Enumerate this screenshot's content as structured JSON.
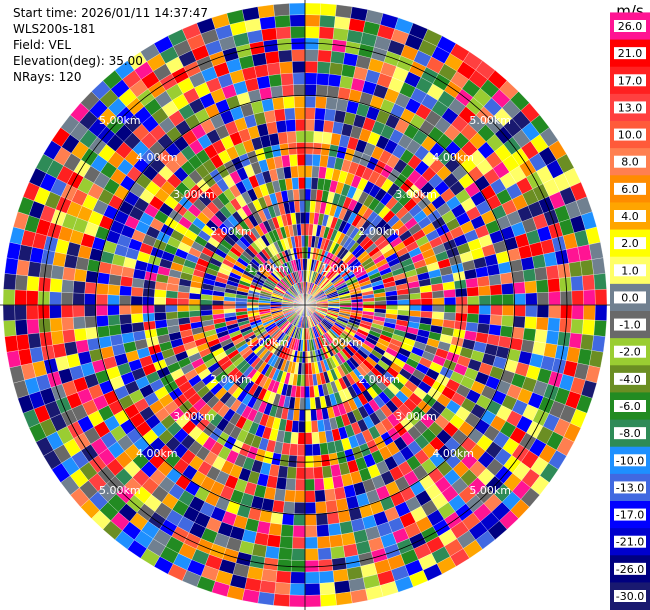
{
  "header": {
    "start_time": "Start time: 2026/01/11 14:37:47",
    "station": "WLS200s-181",
    "field": "Field: VEL",
    "elevation": "Elevation(deg): 35.00",
    "nrays": "NRays: 120"
  },
  "chart_data": {
    "type": "heatmap",
    "projection": "polar-ppi",
    "field": "VEL",
    "units": "m/s",
    "n_rays": 120,
    "elevation_deg": 35.0,
    "range_km": [
      0,
      5.0
    ],
    "range_rings_km": [
      1.0,
      2.0,
      3.0,
      4.0,
      5.0
    ],
    "ring_labels": [
      "1.00km",
      "2.00km",
      "3.00km",
      "4.00km",
      "5.00km"
    ],
    "colorbar": {
      "label": "m/s",
      "ticks": [
        "26.0",
        "21.0",
        "17.0",
        "13.0",
        "10.0",
        "8.0",
        "6.0",
        "4.0",
        "2.0",
        "1.0",
        "0.0",
        "-1.0",
        "-2.0",
        "-4.0",
        "-6.0",
        "-8.0",
        "-10.0",
        "-13.0",
        "-17.0",
        "-21.0",
        "-26.0",
        "-30.0"
      ],
      "colors": [
        "#ff1493",
        "#ff0000",
        "#ff2020",
        "#ff4040",
        "#ff5a3a",
        "#ff7f50",
        "#ff8c00",
        "#ffa500",
        "#ffff00",
        "#ffff66",
        "#708090",
        "#696969",
        "#9acd32",
        "#6b8e23",
        "#228b22",
        "#2e8b57",
        "#1e90ff",
        "#4169e1",
        "#0000ff",
        "#0000cd",
        "#000080",
        "#191970"
      ]
    },
    "grid": true
  }
}
